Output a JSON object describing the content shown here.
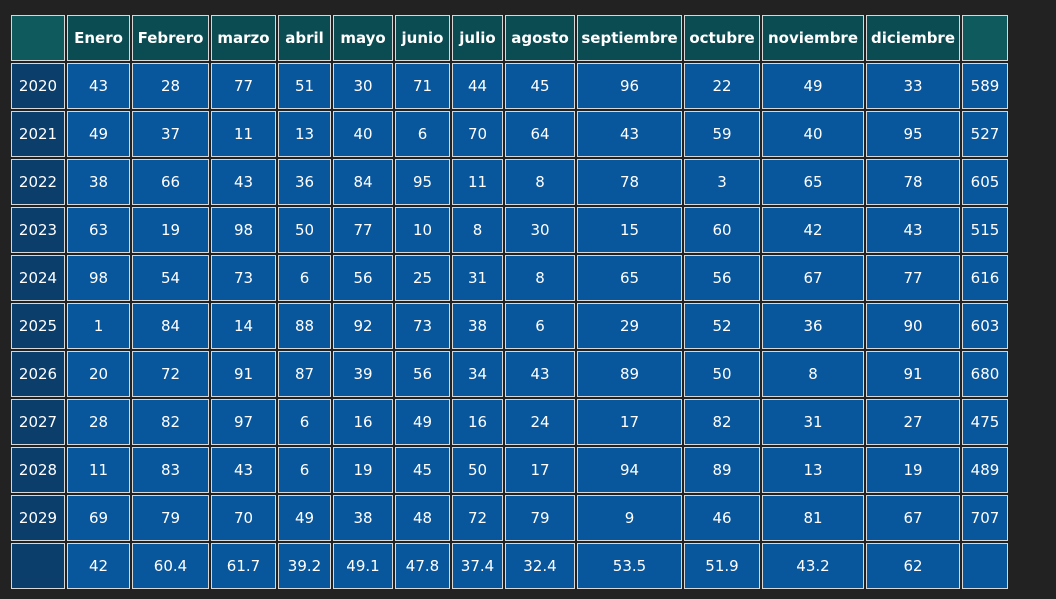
{
  "months": [
    "Enero",
    "Febrero",
    "marzo",
    "abril",
    "mayo",
    "junio",
    "julio",
    "agosto",
    "septiembre",
    "octubre",
    "noviembre",
    "diciembre"
  ],
  "rows": [
    {
      "year": "2020",
      "values": [
        "43",
        "28",
        "77",
        "51",
        "30",
        "71",
        "44",
        "45",
        "96",
        "22",
        "49",
        "33"
      ],
      "total": "589"
    },
    {
      "year": "2021",
      "values": [
        "49",
        "37",
        "11",
        "13",
        "40",
        "6",
        "70",
        "64",
        "43",
        "59",
        "40",
        "95"
      ],
      "total": "527"
    },
    {
      "year": "2022",
      "values": [
        "38",
        "66",
        "43",
        "36",
        "84",
        "95",
        "11",
        "8",
        "78",
        "3",
        "65",
        "78"
      ],
      "total": "605"
    },
    {
      "year": "2023",
      "values": [
        "63",
        "19",
        "98",
        "50",
        "77",
        "10",
        "8",
        "30",
        "15",
        "60",
        "42",
        "43"
      ],
      "total": "515"
    },
    {
      "year": "2024",
      "values": [
        "98",
        "54",
        "73",
        "6",
        "56",
        "25",
        "31",
        "8",
        "65",
        "56",
        "67",
        "77"
      ],
      "total": "616"
    },
    {
      "year": "2025",
      "values": [
        "1",
        "84",
        "14",
        "88",
        "92",
        "73",
        "38",
        "6",
        "29",
        "52",
        "36",
        "90"
      ],
      "total": "603"
    },
    {
      "year": "2026",
      "values": [
        "20",
        "72",
        "91",
        "87",
        "39",
        "56",
        "34",
        "43",
        "89",
        "50",
        "8",
        "91"
      ],
      "total": "680"
    },
    {
      "year": "2027",
      "values": [
        "28",
        "82",
        "97",
        "6",
        "16",
        "49",
        "16",
        "24",
        "17",
        "82",
        "31",
        "27"
      ],
      "total": "475"
    },
    {
      "year": "2028",
      "values": [
        "11",
        "83",
        "43",
        "6",
        "19",
        "45",
        "50",
        "17",
        "94",
        "89",
        "13",
        "19"
      ],
      "total": "489"
    },
    {
      "year": "2029",
      "values": [
        "69",
        "79",
        "70",
        "49",
        "38",
        "48",
        "72",
        "79",
        "9",
        "46",
        "81",
        "67"
      ],
      "total": "707"
    }
  ],
  "averages": [
    "42",
    "60.4",
    "61.7",
    "39.2",
    "49.1",
    "47.8",
    "37.4",
    "32.4",
    "53.5",
    "51.9",
    "43.2",
    "62"
  ]
}
